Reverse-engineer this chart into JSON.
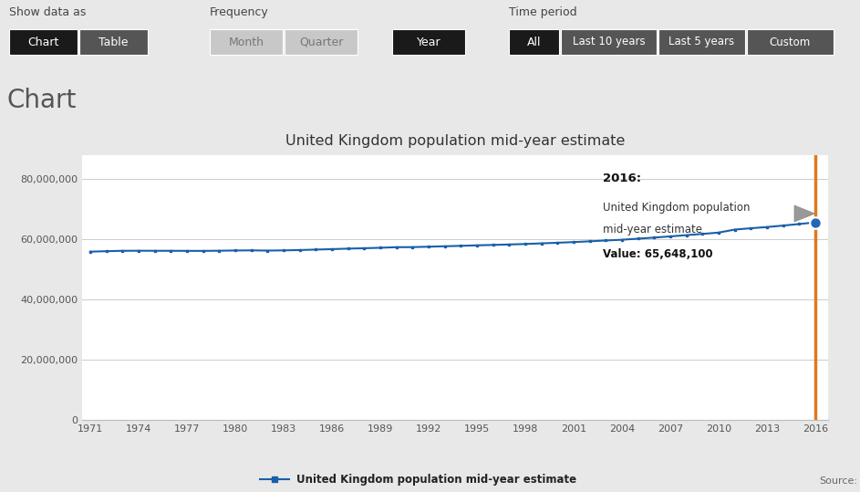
{
  "title": "United Kingdom population mid-year estimate",
  "legend_label": "United Kingdom population mid-year estimate",
  "source_text": "Source:",
  "years": [
    1971,
    1972,
    1973,
    1974,
    1975,
    1976,
    1977,
    1978,
    1979,
    1980,
    1981,
    1982,
    1983,
    1984,
    1985,
    1986,
    1987,
    1988,
    1989,
    1990,
    1991,
    1992,
    1993,
    1994,
    1995,
    1996,
    1997,
    1998,
    1999,
    2000,
    2001,
    2002,
    2003,
    2004,
    2005,
    2006,
    2007,
    2008,
    2009,
    2010,
    2011,
    2012,
    2013,
    2014,
    2015,
    2016
  ],
  "values": [
    55928000,
    56079000,
    56210000,
    56236000,
    56215000,
    56216000,
    56190000,
    56178000,
    56240000,
    56314000,
    56352000,
    56285000,
    56347000,
    56460000,
    56618000,
    56763000,
    56930000,
    57065000,
    57218000,
    57411000,
    57439000,
    57570000,
    57718000,
    57862000,
    58025000,
    58164000,
    58314000,
    58474000,
    58684000,
    58886000,
    59113000,
    59365000,
    59636000,
    59889000,
    60238000,
    60600000,
    61000000,
    61414000,
    61823000,
    62262000,
    63258000,
    63705000,
    64106000,
    64596000,
    65110000,
    65648100
  ],
  "highlight_year": 2016,
  "highlight_value": 65648100,
  "tooltip_title": "2016:",
  "tooltip_line1": "United Kingdom population",
  "tooltip_line2": "mid-year estimate",
  "tooltip_value": "Value: 65,648,100",
  "line_color": "#1a5fa8",
  "highlight_line_color": "#e07820",
  "bg_color": "#e8e8e8",
  "chart_bg": "#ffffff",
  "yticks": [
    0,
    20000000,
    40000000,
    60000000,
    80000000
  ],
  "ytick_labels": [
    "0",
    "20,000,000",
    "40,000,000",
    "60,000,000",
    "80,000,000"
  ],
  "xtick_years": [
    1971,
    1974,
    1977,
    1980,
    1983,
    1986,
    1989,
    1992,
    1995,
    1998,
    2001,
    2004,
    2007,
    2010,
    2013,
    2016
  ],
  "ylim": [
    0,
    88000000
  ],
  "xlim_start": 1970.5,
  "xlim_end": 2016.8,
  "btn_active_bg": "#1a1a1a",
  "btn_inactive_bg": "#c8c8c8",
  "btn_dark_bg": "#555555",
  "btn_text_active": "#ffffff",
  "btn_text_inactive": "#777777",
  "header_text_color": "#444444",
  "chart_section_label": "Chart",
  "show_data_label": "Show data as",
  "frequency_label": "Frequency",
  "time_period_label": "Time period",
  "btn_chart": "Chart",
  "btn_table": "Table",
  "btn_month": "Month",
  "btn_quarter": "Quarter",
  "btn_year": "Year",
  "btn_all": "All",
  "btn_last10": "Last 10 years",
  "btn_last5": "Last 5 years",
  "btn_custom": "Custom",
  "tooltip_bg": "#e0e0e0",
  "tooltip_border": "#bbbbbb"
}
